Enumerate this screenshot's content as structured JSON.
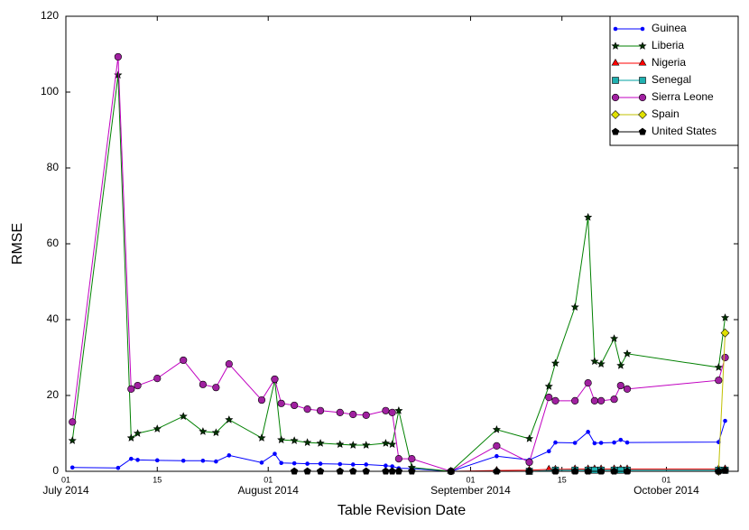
{
  "chart_data": {
    "type": "line",
    "xlabel": "Table Revision Date",
    "ylabel": "RMSE",
    "xlim": [
      "2014-07-01",
      "2014-10-12"
    ],
    "ylim": [
      0,
      120
    ],
    "yticks": [
      0,
      20,
      40,
      60,
      80,
      100,
      120
    ],
    "xticks": [
      {
        "value": "2014-07-01",
        "label": "01"
      },
      {
        "value": "2014-07-15",
        "label": "15"
      },
      {
        "value": "2014-08-01",
        "label": "01"
      },
      {
        "value": "2014-09-01",
        "label": "01"
      },
      {
        "value": "2014-09-15",
        "label": "15"
      },
      {
        "value": "2014-10-01",
        "label": "01"
      }
    ],
    "xtick_months": [
      {
        "value": "2014-07-01",
        "label": "July 2014"
      },
      {
        "value": "2014-08-01",
        "label": "August 2014"
      },
      {
        "value": "2014-09-01",
        "label": "September 2014"
      },
      {
        "value": "2014-10-01",
        "label": "October 2014"
      }
    ],
    "legend": "upper right",
    "series": [
      {
        "name": "Guinea",
        "color": "#0000ff",
        "marker": "dot",
        "x": [
          "2014-07-02",
          "2014-07-09",
          "2014-07-11",
          "2014-07-12",
          "2014-07-15",
          "2014-07-19",
          "2014-07-22",
          "2014-07-24",
          "2014-07-26",
          "2014-07-31",
          "2014-08-02",
          "2014-08-03",
          "2014-08-05",
          "2014-08-07",
          "2014-08-09",
          "2014-08-12",
          "2014-08-14",
          "2014-08-16",
          "2014-08-19",
          "2014-08-20",
          "2014-08-21",
          "2014-08-23",
          "2014-08-29",
          "2014-09-05",
          "2014-09-10",
          "2014-09-13",
          "2014-09-14",
          "2014-09-17",
          "2014-09-19",
          "2014-09-20",
          "2014-09-21",
          "2014-09-23",
          "2014-09-24",
          "2014-09-25",
          "2014-10-09",
          "2014-10-10"
        ],
        "values": [
          1.0,
          0.9,
          3.3,
          3.0,
          2.9,
          2.8,
          2.8,
          2.6,
          4.2,
          2.3,
          4.6,
          2.2,
          2.1,
          2.0,
          2.0,
          1.9,
          1.8,
          1.8,
          1.5,
          1.3,
          0.8,
          0.7,
          0,
          4.0,
          3.0,
          5.3,
          7.6,
          7.5,
          10.4,
          7.4,
          7.5,
          7.6,
          8.3,
          7.6,
          7.7,
          13.3
        ]
      },
      {
        "name": "Liberia",
        "color": "#008000",
        "marker": "star",
        "x": [
          "2014-07-02",
          "2014-07-09",
          "2014-07-11",
          "2014-07-12",
          "2014-07-15",
          "2014-07-19",
          "2014-07-22",
          "2014-07-24",
          "2014-07-26",
          "2014-07-31",
          "2014-08-02",
          "2014-08-03",
          "2014-08-05",
          "2014-08-07",
          "2014-08-09",
          "2014-08-12",
          "2014-08-14",
          "2014-08-16",
          "2014-08-19",
          "2014-08-20",
          "2014-08-21",
          "2014-08-23",
          "2014-08-29",
          "2014-09-05",
          "2014-09-10",
          "2014-09-13",
          "2014-09-14",
          "2014-09-17",
          "2014-09-19",
          "2014-09-20",
          "2014-09-21",
          "2014-09-23",
          "2014-09-24",
          "2014-09-25",
          "2014-10-09",
          "2014-10-10"
        ],
        "values": [
          8.1,
          104.5,
          8.8,
          10.0,
          11.2,
          14.5,
          10.5,
          10.2,
          13.6,
          8.8,
          24.0,
          8.3,
          8.1,
          7.6,
          7.4,
          7.1,
          6.9,
          6.9,
          7.4,
          7.1,
          16.0,
          1.0,
          0,
          11.0,
          8.6,
          22.4,
          28.5,
          43.3,
          67.0,
          29.0,
          28.3,
          35.0,
          27.9,
          31.0,
          27.4,
          40.5
        ]
      },
      {
        "name": "Nigeria",
        "color": "#ff0000",
        "marker": "triangle",
        "x": [
          "2014-08-29",
          "2014-09-05",
          "2014-09-10",
          "2014-09-13",
          "2014-09-14",
          "2014-09-17",
          "2014-09-19",
          "2014-09-20",
          "2014-09-21",
          "2014-09-23",
          "2014-09-24",
          "2014-09-25",
          "2014-10-09",
          "2014-10-10"
        ],
        "values": [
          0,
          0.2,
          0.3,
          0.5,
          0.5,
          0.6,
          0.6,
          0.6,
          0.6,
          0.6,
          0.6,
          0.6,
          0.6,
          0.6
        ]
      },
      {
        "name": "Senegal",
        "color": "#00a0a0",
        "marker": "square",
        "x": [
          "2014-09-10",
          "2014-09-14",
          "2014-09-17",
          "2014-09-19",
          "2014-09-20",
          "2014-09-21",
          "2014-09-23",
          "2014-09-24",
          "2014-09-25",
          "2014-10-09",
          "2014-10-10"
        ],
        "values": [
          0,
          0.3,
          0.3,
          0.3,
          0.3,
          0.3,
          0.3,
          0.3,
          0.3,
          0.3,
          0.3
        ]
      },
      {
        "name": "Sierra Leone",
        "color": "#c000c0",
        "marker": "circle",
        "x": [
          "2014-07-02",
          "2014-07-09",
          "2014-07-11",
          "2014-07-12",
          "2014-07-15",
          "2014-07-19",
          "2014-07-22",
          "2014-07-24",
          "2014-07-26",
          "2014-07-31",
          "2014-08-02",
          "2014-08-03",
          "2014-08-05",
          "2014-08-07",
          "2014-08-09",
          "2014-08-12",
          "2014-08-14",
          "2014-08-16",
          "2014-08-19",
          "2014-08-20",
          "2014-08-21",
          "2014-08-23",
          "2014-08-29",
          "2014-09-05",
          "2014-09-10",
          "2014-09-13",
          "2014-09-14",
          "2014-09-17",
          "2014-09-19",
          "2014-09-20",
          "2014-09-21",
          "2014-09-23",
          "2014-09-24",
          "2014-09-25",
          "2014-10-09",
          "2014-10-10"
        ],
        "values": [
          13.0,
          109.3,
          21.7,
          22.6,
          24.5,
          29.3,
          22.9,
          22.1,
          28.3,
          18.8,
          24.3,
          17.9,
          17.4,
          16.4,
          16.0,
          15.5,
          15.0,
          14.8,
          16.0,
          15.5,
          3.3,
          3.3,
          0,
          6.7,
          2.4,
          19.5,
          18.6,
          18.6,
          23.3,
          18.6,
          18.6,
          19.0,
          22.6,
          21.7,
          24.0,
          30.0
        ]
      },
      {
        "name": "Spain",
        "color": "#c0c000",
        "marker": "diamond",
        "x": [
          "2014-10-09",
          "2014-10-10"
        ],
        "values": [
          0,
          36.5
        ]
      },
      {
        "name": "United States",
        "color": "#000000",
        "marker": "pentagon",
        "x": [
          "2014-08-05",
          "2014-08-07",
          "2014-08-09",
          "2014-08-12",
          "2014-08-14",
          "2014-08-16",
          "2014-08-19",
          "2014-08-20",
          "2014-08-21",
          "2014-08-23",
          "2014-08-29",
          "2014-09-05",
          "2014-09-10",
          "2014-09-14",
          "2014-09-17",
          "2014-09-19",
          "2014-09-21",
          "2014-09-23",
          "2014-09-25",
          "2014-10-09",
          "2014-10-10"
        ],
        "values": [
          0,
          0,
          0,
          0,
          0,
          0,
          0,
          0,
          0,
          0,
          0,
          0,
          0,
          0,
          0,
          0,
          0,
          0,
          0,
          0,
          0.2
        ]
      }
    ]
  }
}
